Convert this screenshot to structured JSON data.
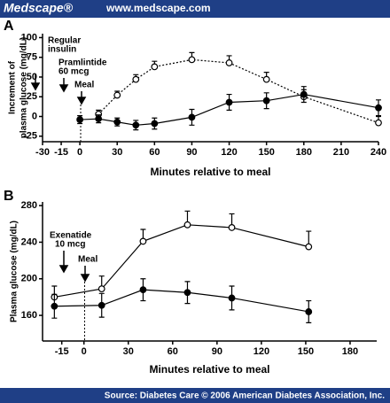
{
  "header": {
    "brand": "Medscape®",
    "url": "www.medscape.com"
  },
  "footer": {
    "source": "Source: Diabetes Care © 2006 American Diabetes Association, Inc."
  },
  "chart_data": [
    {
      "type": "line",
      "panel": "A",
      "xlabel": "Minutes relative to meal",
      "ylabel_lines": [
        "Increment of",
        "plasma glucose (mg/dL)"
      ],
      "annotations": [
        "Regular",
        "insulin",
        "Pramlintide",
        "60 mcg",
        "Meal"
      ],
      "x": [
        0,
        15,
        30,
        45,
        60,
        90,
        120,
        150,
        180,
        240
      ],
      "xlim": [
        -30,
        240
      ],
      "xticks": [
        -30,
        -15,
        0,
        30,
        60,
        90,
        120,
        150,
        180,
        210,
        240
      ],
      "ylim": [
        -32,
        105
      ],
      "yticks": [
        -25,
        0,
        25,
        50,
        75,
        100
      ],
      "series": [
        {
          "color": "#000000",
          "marker": "open",
          "linestyle": "dotted",
          "error_bars": "up",
          "values": [
            null,
            3,
            27,
            47,
            63,
            72,
            68,
            47,
            25,
            -8
          ],
          "errors": [
            null,
            5,
            5,
            6,
            7,
            9,
            9,
            9,
            9,
            8
          ]
        },
        {
          "color": "#000000",
          "marker": "filled",
          "linestyle": "solid",
          "error_bars": "both",
          "values": [
            -4,
            -3,
            -7,
            -11,
            -9,
            -1,
            18,
            20,
            28,
            11
          ],
          "errors": [
            5,
            5,
            5,
            6,
            7,
            10,
            10,
            10,
            10,
            10
          ]
        }
      ]
    },
    {
      "type": "line",
      "panel": "B",
      "xlabel": "Minutes relative to meal",
      "ylabel_lines": [
        "Plasma glucose (mg/dL)"
      ],
      "annotations": [
        "Exenatide",
        "10 mcg",
        "Meal"
      ],
      "x": [
        -20,
        12,
        40,
        70,
        100,
        152
      ],
      "xlim": [
        -28,
        198
      ],
      "xticks": [
        -15,
        0,
        30,
        60,
        90,
        120,
        150,
        180
      ],
      "ylim": [
        132,
        284
      ],
      "yticks": [
        160,
        200,
        240,
        280
      ],
      "series": [
        {
          "color": "#000000",
          "marker": "open",
          "linestyle": "solid",
          "error_bars": "up",
          "values": [
            180,
            189,
            241,
            259,
            256,
            235
          ],
          "errors": [
            12,
            14,
            13,
            15,
            15,
            17
          ]
        },
        {
          "color": "#000000",
          "marker": "filled",
          "linestyle": "solid",
          "error_bars": "both",
          "values": [
            170,
            171,
            188,
            185,
            179,
            164
          ],
          "errors": [
            13,
            13,
            12,
            12,
            13,
            12
          ]
        }
      ]
    }
  ]
}
